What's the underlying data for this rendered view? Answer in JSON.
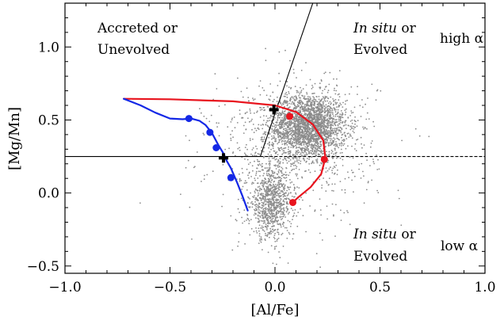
{
  "chart_data": {
    "type": "scatter",
    "xlabel": "[Al/Fe]",
    "ylabel": "[Mg/Mn]",
    "xlim": [
      -1.0,
      1.0
    ],
    "ylim": [
      -0.55,
      1.3
    ],
    "x_ticks": [
      -1.0,
      -0.5,
      0.0,
      0.5,
      1.0
    ],
    "x_tick_labels": [
      "−1.0",
      "−0.5",
      "0.0",
      "0.5",
      "1.0"
    ],
    "y_ticks": [
      -0.5,
      0.0,
      0.5,
      1.0
    ],
    "y_tick_labels": [
      "−0.5",
      "0.0",
      "0.5",
      "1.0"
    ],
    "grid": false,
    "colors": {
      "scatter": "#8c8c8c",
      "red_track": "#e8141e",
      "blue_track": "#1428e6",
      "marker": "#000000"
    },
    "region_labels": {
      "accreted_1": "Accreted or",
      "accreted_2": "Unevolved",
      "insitu_high_em": "In situ",
      "insitu_high_rest": " or",
      "insitu_high_2": "Evolved",
      "high_alpha": "high α",
      "insitu_low_em": "In situ",
      "insitu_low_rest": " or",
      "insitu_low_2": "Evolved",
      "low_alpha": "low α"
    },
    "boundaries": {
      "horizontal_y": 0.25,
      "solid_segment_x": [
        -1.0,
        -0.07
      ],
      "dashed_segment_x": [
        -0.07,
        1.0
      ],
      "diagonal": {
        "x": [
          -0.07,
          0.18
        ],
        "y": [
          0.25,
          1.3
        ]
      }
    },
    "scatter_clouds": [
      {
        "name": "upper-cloud",
        "cx": 0.16,
        "cy": 0.46,
        "sx": 0.09,
        "sy": 0.11,
        "count": 2400
      },
      {
        "name": "lower-cloud",
        "cx": -0.02,
        "cy": -0.07,
        "sx": 0.05,
        "sy": 0.12,
        "count": 900
      },
      {
        "name": "halo",
        "cx": 0.08,
        "cy": 0.3,
        "sx": 0.2,
        "sy": 0.25,
        "count": 700
      }
    ],
    "series": [
      {
        "x": [
          -0.72,
          -0.5,
          -0.2,
          0.0,
          0.1,
          0.18,
          0.23,
          0.24,
          0.22,
          0.17,
          0.11,
          0.085
        ],
        "y": [
          0.645,
          0.642,
          0.628,
          0.6,
          0.555,
          0.47,
          0.36,
          0.24,
          0.13,
          0.04,
          -0.03,
          -0.065
        ],
        "markers": [
          [
            0.07,
            0.525
          ],
          [
            0.235,
            0.23
          ],
          [
            0.085,
            -0.065
          ]
        ]
      },
      {
        "x": [
          -0.72,
          -0.64,
          -0.57,
          -0.5,
          -0.44,
          -0.4,
          -0.36,
          -0.33,
          -0.3,
          -0.27,
          -0.245,
          -0.23,
          -0.21,
          -0.18,
          -0.155,
          -0.13
        ],
        "y": [
          0.645,
          0.6,
          0.55,
          0.51,
          0.505,
          0.51,
          0.495,
          0.465,
          0.41,
          0.33,
          0.27,
          0.22,
          0.17,
          0.07,
          -0.02,
          -0.12
        ],
        "markers": [
          [
            -0.41,
            0.51
          ],
          [
            -0.31,
            0.415
          ],
          [
            -0.28,
            0.31
          ],
          [
            -0.21,
            0.105
          ]
        ]
      }
    ],
    "cross_markers": [
      [
        -0.245,
        0.24
      ],
      [
        -0.005,
        0.57
      ]
    ]
  }
}
